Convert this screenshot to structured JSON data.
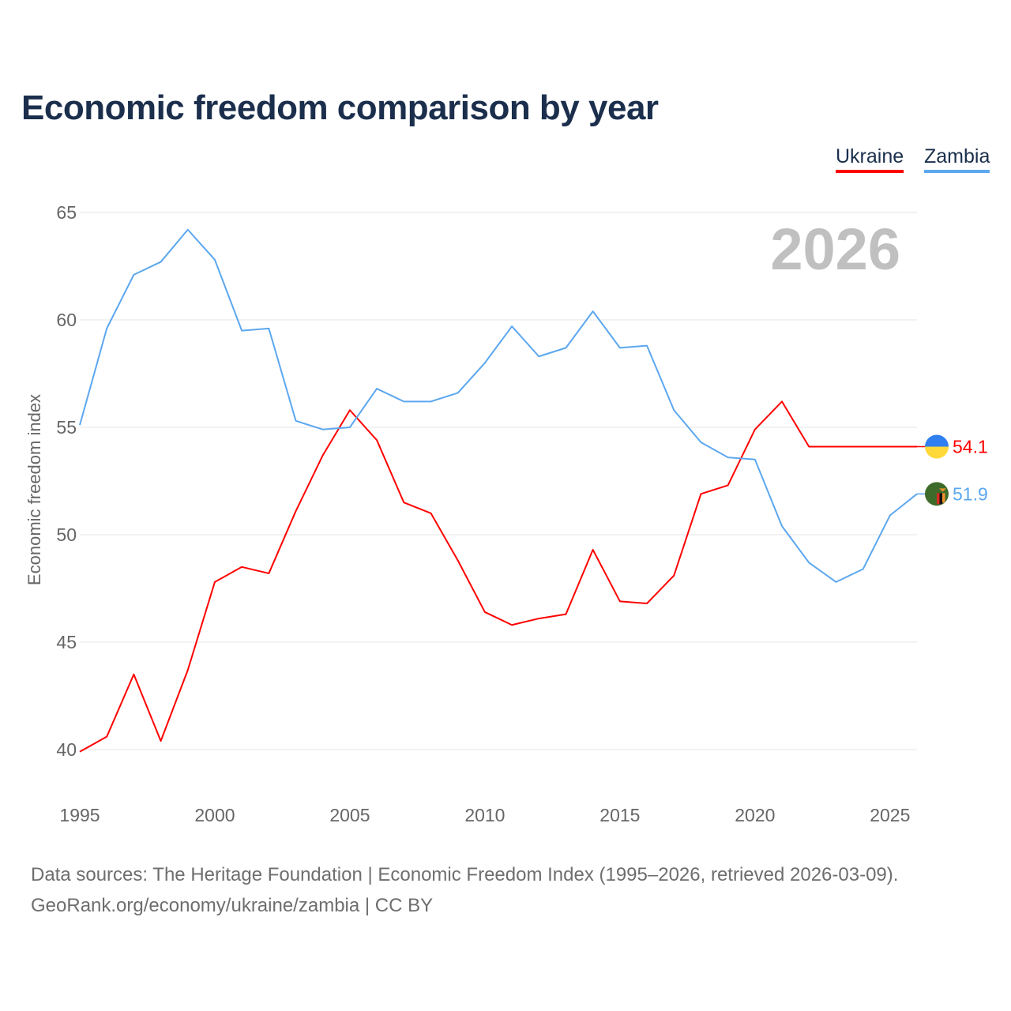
{
  "chart_data": {
    "type": "line",
    "title": "Economic freedom comparison by year",
    "xlabel": "",
    "ylabel": "Economic freedom index",
    "xlim": [
      1995,
      2026
    ],
    "ylim": [
      40,
      65
    ],
    "yticks": [
      40,
      45,
      50,
      55,
      60,
      65
    ],
    "xticks": [
      1995,
      2000,
      2005,
      2010,
      2015,
      2020,
      2025
    ],
    "grid": true,
    "legend_position": "top-right",
    "year_watermark": "2026",
    "x": [
      1995,
      1996,
      1997,
      1998,
      1999,
      2000,
      2001,
      2002,
      2003,
      2004,
      2005,
      2006,
      2007,
      2008,
      2009,
      2010,
      2011,
      2012,
      2013,
      2014,
      2015,
      2016,
      2017,
      2018,
      2019,
      2020,
      2021,
      2022,
      2023,
      2024,
      2025,
      2026
    ],
    "series": [
      {
        "name": "Ukraine",
        "color": "#ff0000",
        "end_label": "54.1",
        "values": [
          39.9,
          40.6,
          43.5,
          40.4,
          43.7,
          47.8,
          48.5,
          48.2,
          51.1,
          53.7,
          55.8,
          54.4,
          51.5,
          51.0,
          48.8,
          46.4,
          45.8,
          46.1,
          46.3,
          49.3,
          46.9,
          46.8,
          48.1,
          51.9,
          52.3,
          54.9,
          56.2,
          54.1,
          54.1,
          54.1,
          54.1,
          54.1
        ]
      },
      {
        "name": "Zambia",
        "color": "#5ca7ef",
        "end_label": "51.9",
        "values": [
          55.1,
          59.6,
          62.1,
          62.7,
          64.2,
          62.8,
          59.5,
          59.6,
          55.3,
          54.9,
          55.0,
          56.8,
          56.2,
          56.2,
          56.6,
          58.0,
          59.7,
          58.3,
          58.7,
          60.4,
          58.7,
          58.8,
          55.8,
          54.3,
          53.6,
          53.5,
          50.4,
          48.7,
          47.8,
          48.4,
          50.9,
          51.9
        ]
      }
    ]
  },
  "footer": {
    "line1": "Data sources: The Heritage Foundation | Economic Freedom Index (1995–2026, retrieved 2026-03-09).",
    "line2": "GeoRank.org/economy/ukraine/zambia | CC BY"
  }
}
